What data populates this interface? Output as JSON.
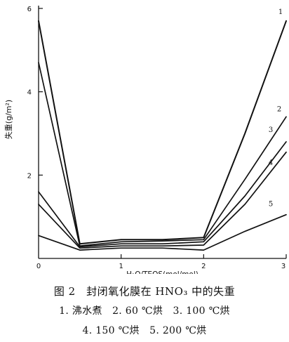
{
  "chart_data": {
    "type": "line",
    "title": "",
    "xlabel": "H₂O/TEOS(mol/mol)",
    "ylabel": "失重(g/m²)",
    "xlim": [
      0,
      3
    ],
    "ylim": [
      0,
      6
    ],
    "x_ticks": [
      "0",
      "1",
      "2",
      "3"
    ],
    "y_ticks": [
      "2",
      "4",
      "6"
    ],
    "grid": false,
    "series": [
      {
        "name": "1",
        "x": [
          0,
          0.5,
          1,
          1.5,
          2,
          2.5,
          3
        ],
        "y": [
          5.7,
          0.35,
          0.45,
          0.45,
          0.5,
          3.0,
          5.7
        ]
      },
      {
        "name": "2",
        "x": [
          0,
          0.5,
          1,
          1.5,
          2,
          2.5,
          3
        ],
        "y": [
          4.7,
          0.3,
          0.4,
          0.42,
          0.45,
          1.9,
          3.4
        ]
      },
      {
        "name": "3",
        "x": [
          0,
          0.5,
          1,
          1.5,
          2,
          2.5,
          3
        ],
        "y": [
          1.6,
          0.28,
          0.35,
          0.35,
          0.4,
          1.5,
          2.8
        ]
      },
      {
        "name": "4",
        "x": [
          0,
          0.5,
          1,
          1.5,
          2,
          2.5,
          3
        ],
        "y": [
          1.3,
          0.25,
          0.3,
          0.3,
          0.32,
          1.3,
          2.55
        ]
      },
      {
        "name": "5",
        "x": [
          0,
          0.5,
          1,
          1.5,
          2,
          2.5,
          3
        ],
        "y": [
          0.55,
          0.2,
          0.25,
          0.25,
          0.2,
          0.65,
          1.05
        ]
      }
    ]
  },
  "caption": {
    "title": "图 2　封闭氧化膜在 HNO₃ 中的失重",
    "legend_line_1": "1. 沸水煮　2. 60 ℃烘　3. 100 ℃烘",
    "legend_line_2": "4. 150 ℃烘　5. 200 ℃烘"
  },
  "colors": {
    "line": "#111111",
    "axis": "#111111",
    "background": "#ffffff"
  }
}
